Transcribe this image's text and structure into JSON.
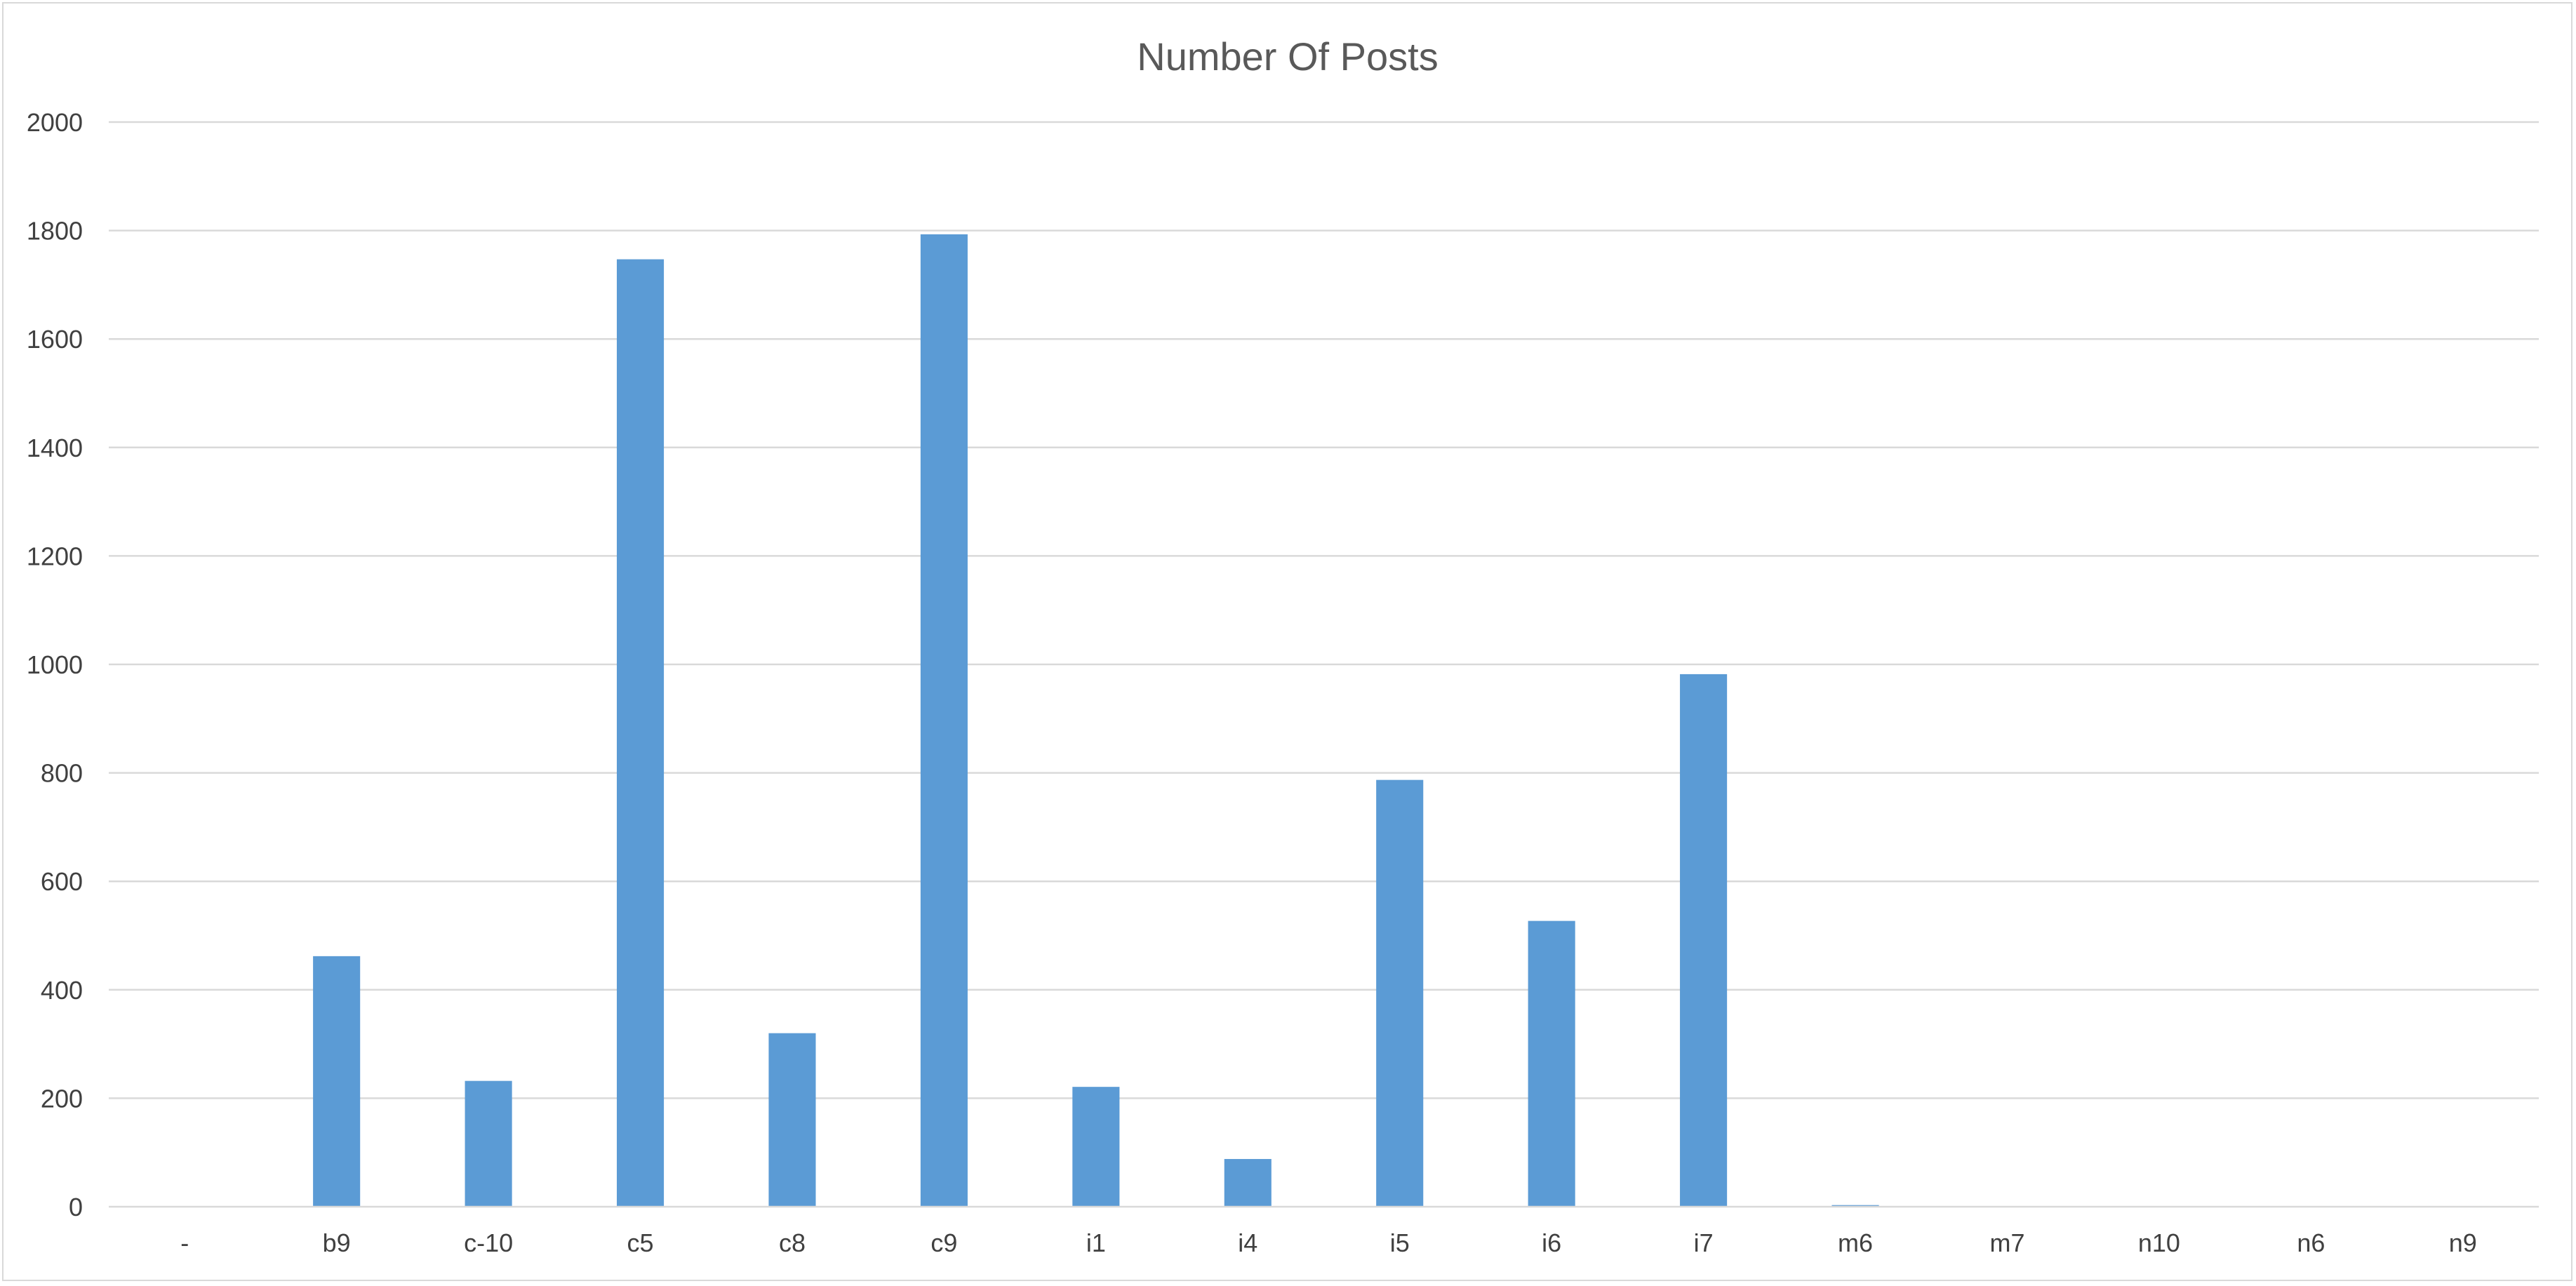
{
  "chart_data": {
    "type": "bar",
    "title": "Number Of Posts",
    "xlabel": "",
    "ylabel": "",
    "ylim": [
      0,
      2000
    ],
    "yticks": [
      "0",
      "200",
      "400",
      "600",
      "800",
      "1000",
      "1200",
      "1400",
      "1600",
      "1800",
      "2000"
    ],
    "grid": true,
    "legend": "none",
    "bar_color": "#5b9bd5",
    "categories": [
      "-",
      "b9",
      "c-10",
      "c5",
      "c8",
      "c9",
      "i1",
      "i4",
      "i5",
      "i6",
      "i7",
      "m6",
      "m7",
      "n10",
      "n6",
      "n9"
    ],
    "values": [
      0,
      462,
      232,
      1747,
      320,
      1793,
      221,
      88,
      787,
      527,
      982,
      3,
      0,
      0,
      0,
      0
    ]
  }
}
